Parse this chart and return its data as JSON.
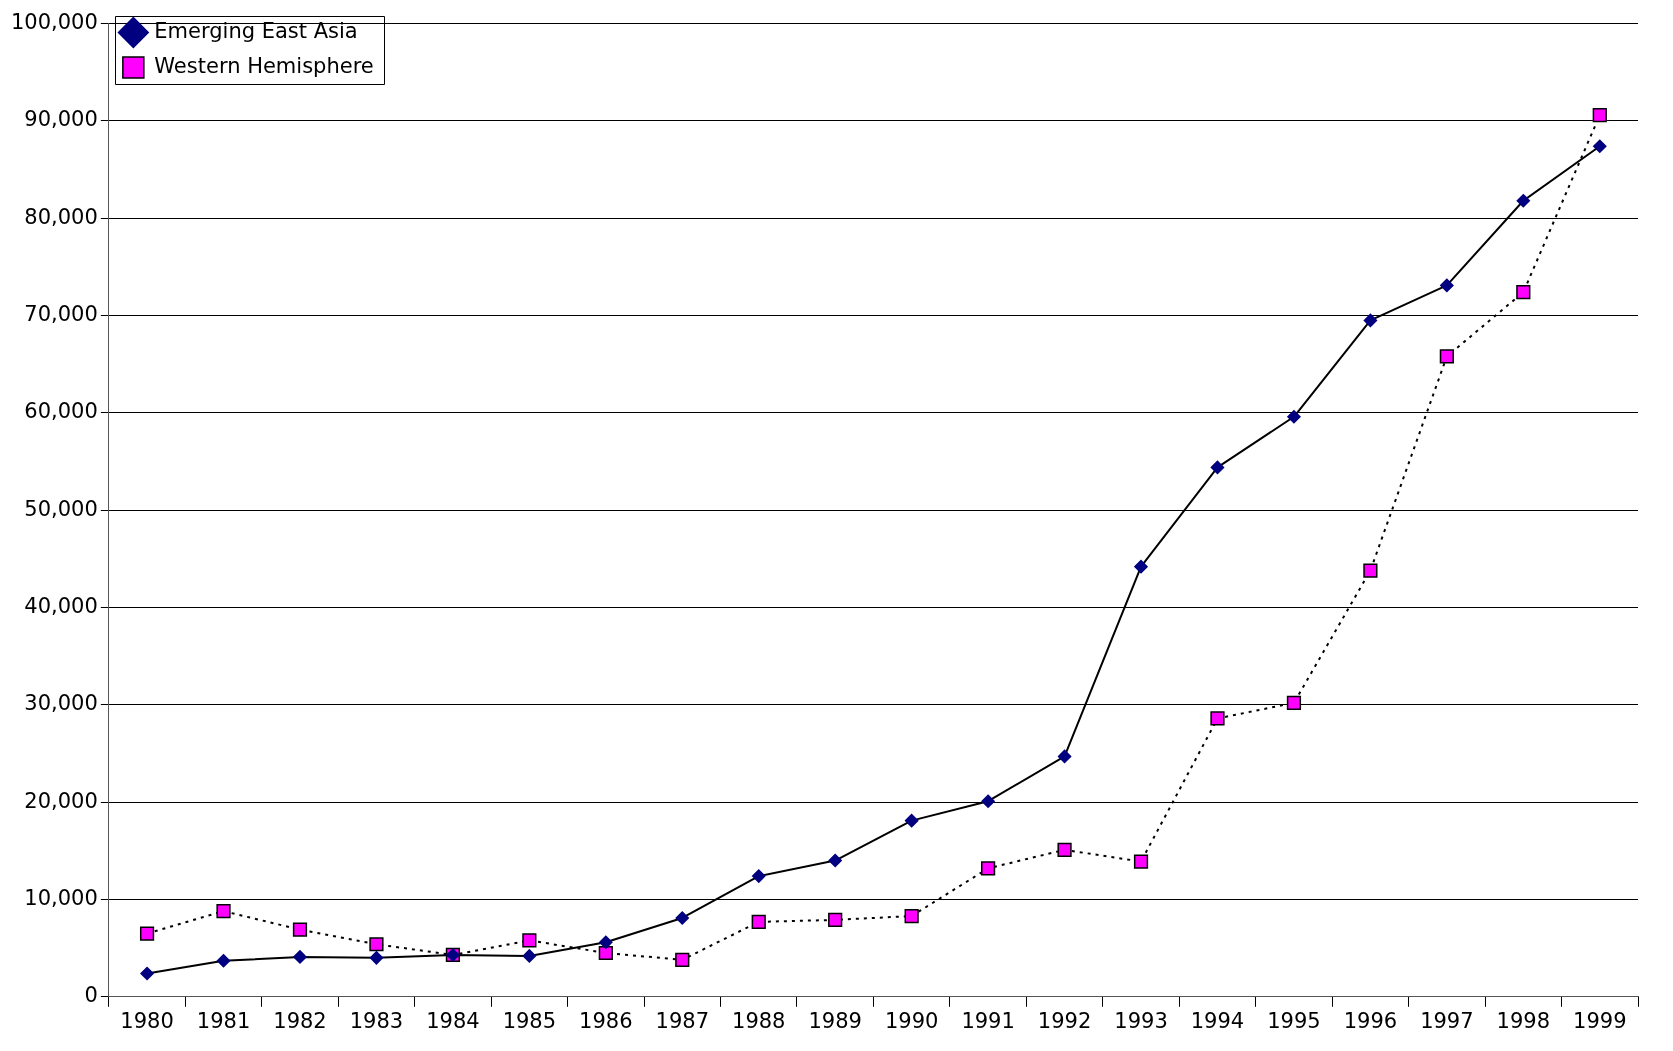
{
  "chart_data": {
    "type": "line",
    "categories": [
      "1980",
      "1981",
      "1982",
      "1983",
      "1984",
      "1985",
      "1986",
      "1987",
      "1988",
      "1989",
      "1990",
      "1991",
      "1992",
      "1993",
      "1994",
      "1995",
      "1996",
      "1997",
      "1998",
      "1999"
    ],
    "series": [
      {
        "name": "Emerging East Asia",
        "color": "#000080",
        "marker": "diamond",
        "line_style": "solid",
        "values": [
          2400,
          3700,
          4100,
          4000,
          4300,
          4200,
          5600,
          8100,
          12400,
          14000,
          18100,
          20100,
          24700,
          44200,
          54400,
          59600,
          69500,
          73100,
          81800,
          87400
        ]
      },
      {
        "name": "Western Hemisphere",
        "color": "#ff00ff",
        "marker": "square",
        "line_style": "dotted",
        "values": [
          6500,
          8800,
          6900,
          5400,
          4300,
          5800,
          4500,
          3800,
          7700,
          7900,
          8300,
          13200,
          15100,
          13900,
          28600,
          30200,
          43800,
          65800,
          72400,
          90600
        ]
      }
    ],
    "ylim": [
      0,
      100000
    ],
    "yticks": [
      {
        "value": 0,
        "label": "0"
      },
      {
        "value": 10000,
        "label": "10,000"
      },
      {
        "value": 20000,
        "label": "20,000"
      },
      {
        "value": 30000,
        "label": "30,000"
      },
      {
        "value": 40000,
        "label": "40,000"
      },
      {
        "value": 50000,
        "label": "50,000"
      },
      {
        "value": 60000,
        "label": "60,000"
      },
      {
        "value": 70000,
        "label": "70,000"
      },
      {
        "value": 80000,
        "label": "80,000"
      },
      {
        "value": 90000,
        "label": "90,000"
      },
      {
        "value": 100000,
        "label": "100,000"
      }
    ],
    "grid": "y",
    "legend": "top left"
  }
}
